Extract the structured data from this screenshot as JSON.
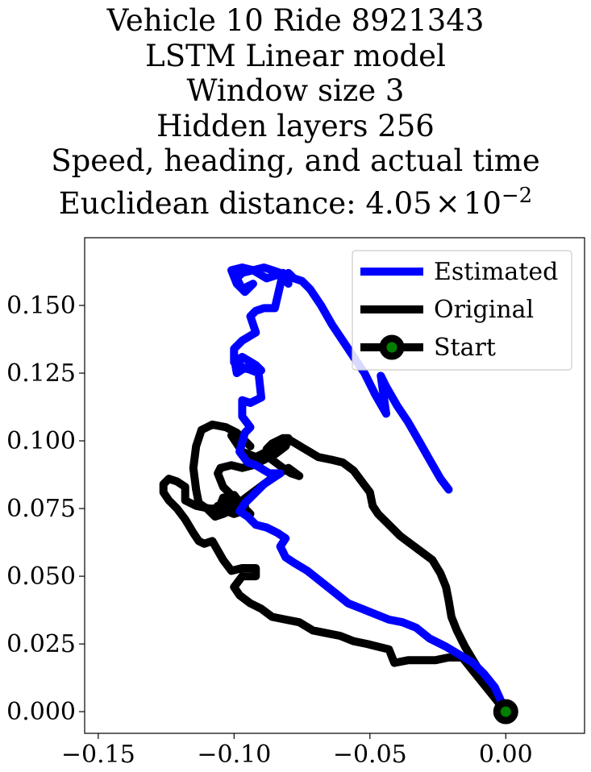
{
  "chart_data": {
    "type": "line",
    "title_lines": [
      "Vehicle 10 Ride 8921343",
      "LSTM Linear model",
      "Window size 3",
      "Hidden layers 256",
      "Speed, heading, and actual time"
    ],
    "title_metric_prefix": "Euclidean distance: ",
    "title_metric_mantissa": "4.05",
    "title_metric_times": "×",
    "title_metric_base": "10",
    "title_metric_exponent": "−2",
    "xlabel": "",
    "ylabel": "",
    "xlim": [
      -0.155,
      0.029
    ],
    "ylim": [
      -0.008,
      0.175
    ],
    "xticks": [
      -0.15,
      -0.1,
      -0.05,
      0.0
    ],
    "xtick_labels": [
      "−0.15",
      "−0.10",
      "−0.05",
      "0.00"
    ],
    "yticks": [
      0.0,
      0.025,
      0.05,
      0.075,
      0.1,
      0.125,
      0.15
    ],
    "ytick_labels": [
      "0.000",
      "0.025",
      "0.050",
      "0.075",
      "0.100",
      "0.125",
      "0.150"
    ],
    "grid": false,
    "legend_position": "top-right",
    "series": [
      {
        "name": "Estimated",
        "color": "#0000ff",
        "line_width": 10,
        "x": [
          -0.021,
          -0.024,
          -0.028,
          -0.032,
          -0.036,
          -0.04,
          -0.044,
          -0.046,
          -0.044,
          -0.048,
          -0.052,
          -0.056,
          -0.06,
          -0.064,
          -0.068,
          -0.072,
          -0.075,
          -0.078,
          -0.08,
          -0.082,
          -0.08,
          -0.083,
          -0.086,
          -0.089,
          -0.093,
          -0.097,
          -0.099,
          -0.097,
          -0.093,
          -0.096,
          -0.099,
          -0.101,
          -0.097,
          -0.093,
          -0.088,
          -0.082,
          -0.085,
          -0.089,
          -0.092,
          -0.094,
          -0.092,
          -0.097,
          -0.1,
          -0.1,
          -0.097,
          -0.092,
          -0.09,
          -0.093,
          -0.097,
          -0.1,
          -0.099,
          -0.096,
          -0.091,
          -0.09,
          -0.094,
          -0.097,
          -0.097,
          -0.094,
          -0.096,
          -0.098,
          -0.095,
          -0.092,
          -0.087,
          -0.083,
          -0.086,
          -0.089,
          -0.093,
          -0.096,
          -0.098,
          -0.095,
          -0.092,
          -0.088,
          -0.084,
          -0.081,
          -0.083,
          -0.081,
          -0.078,
          -0.073,
          -0.068,
          -0.063,
          -0.058,
          -0.053,
          -0.048,
          -0.043,
          -0.038,
          -0.033,
          -0.028,
          -0.022,
          -0.017,
          -0.012,
          -0.008,
          -0.004,
          0.0
        ],
        "y": [
          0.082,
          0.086,
          0.093,
          0.1,
          0.107,
          0.113,
          0.12,
          0.124,
          0.11,
          0.117,
          0.125,
          0.131,
          0.137,
          0.143,
          0.15,
          0.156,
          0.159,
          0.16,
          0.162,
          0.16,
          0.158,
          0.162,
          0.163,
          0.164,
          0.163,
          0.162,
          0.16,
          0.156,
          0.158,
          0.155,
          0.158,
          0.163,
          0.164,
          0.163,
          0.16,
          0.162,
          0.149,
          0.149,
          0.148,
          0.146,
          0.14,
          0.137,
          0.134,
          0.129,
          0.131,
          0.128,
          0.126,
          0.126,
          0.127,
          0.131,
          0.125,
          0.127,
          0.125,
          0.116,
          0.114,
          0.115,
          0.109,
          0.105,
          0.103,
          0.096,
          0.092,
          0.091,
          0.088,
          0.088,
          0.086,
          0.084,
          0.08,
          0.077,
          0.074,
          0.072,
          0.069,
          0.068,
          0.066,
          0.064,
          0.061,
          0.057,
          0.055,
          0.052,
          0.048,
          0.044,
          0.04,
          0.038,
          0.036,
          0.034,
          0.033,
          0.031,
          0.027,
          0.024,
          0.021,
          0.018,
          0.014,
          0.009,
          0.0
        ]
      },
      {
        "name": "Original",
        "color": "#000000",
        "line_width": 10,
        "x": [
          0.0,
          -0.004,
          -0.008,
          -0.012,
          -0.016,
          -0.021,
          -0.026,
          -0.031,
          -0.036,
          -0.041,
          -0.043,
          -0.047,
          -0.051,
          -0.056,
          -0.061,
          -0.066,
          -0.071,
          -0.076,
          -0.081,
          -0.086,
          -0.09,
          -0.094,
          -0.098,
          -0.1,
          -0.097,
          -0.092,
          -0.092,
          -0.097,
          -0.101,
          -0.104,
          -0.108,
          -0.111,
          -0.113,
          -0.115,
          -0.118,
          -0.121,
          -0.124,
          -0.126,
          -0.126,
          -0.124,
          -0.121,
          -0.118,
          -0.118,
          -0.114,
          -0.109,
          -0.105,
          -0.1,
          -0.097,
          -0.096,
          -0.1,
          -0.104,
          -0.106,
          -0.105,
          -0.101,
          -0.097,
          -0.093,
          -0.089,
          -0.085,
          -0.081,
          -0.08,
          -0.082,
          -0.086,
          -0.088,
          -0.086,
          -0.082,
          -0.079,
          -0.076,
          -0.08,
          -0.085,
          -0.089,
          -0.093,
          -0.097,
          -0.1,
          -0.103,
          -0.106,
          -0.108,
          -0.106,
          -0.104,
          -0.1,
          -0.097,
          -0.094,
          -0.096,
          -0.1,
          -0.104,
          -0.107,
          -0.11,
          -0.113,
          -0.114,
          -0.115,
          -0.114,
          -0.112,
          -0.108,
          -0.103,
          -0.099,
          -0.096,
          -0.094,
          -0.096,
          -0.099,
          -0.101,
          -0.097,
          -0.092,
          -0.088,
          -0.084,
          -0.079,
          -0.074,
          -0.069,
          -0.064,
          -0.06,
          -0.056,
          -0.053,
          -0.05,
          -0.049,
          -0.047,
          -0.043,
          -0.039,
          -0.035,
          -0.031,
          -0.027,
          -0.024,
          -0.022,
          -0.021,
          -0.02,
          -0.018,
          -0.015,
          -0.012,
          -0.009,
          -0.006,
          -0.003,
          0.0
        ],
        "y": [
          0.0,
          0.005,
          0.01,
          0.015,
          0.02,
          0.02,
          0.019,
          0.019,
          0.019,
          0.018,
          0.023,
          0.024,
          0.025,
          0.026,
          0.028,
          0.029,
          0.03,
          0.033,
          0.034,
          0.035,
          0.038,
          0.04,
          0.043,
          0.046,
          0.05,
          0.05,
          0.053,
          0.053,
          0.052,
          0.056,
          0.063,
          0.062,
          0.063,
          0.066,
          0.071,
          0.075,
          0.078,
          0.081,
          0.084,
          0.086,
          0.085,
          0.083,
          0.078,
          0.076,
          0.075,
          0.075,
          0.073,
          0.074,
          0.076,
          0.079,
          0.083,
          0.088,
          0.09,
          0.091,
          0.09,
          0.091,
          0.093,
          0.095,
          0.098,
          0.101,
          0.101,
          0.099,
          0.097,
          0.093,
          0.09,
          0.088,
          0.087,
          0.09,
          0.087,
          0.084,
          0.081,
          0.078,
          0.077,
          0.077,
          0.076,
          0.073,
          0.074,
          0.079,
          0.08,
          0.076,
          0.073,
          0.073,
          0.075,
          0.073,
          0.072,
          0.075,
          0.077,
          0.082,
          0.09,
          0.098,
          0.104,
          0.106,
          0.105,
          0.103,
          0.1,
          0.098,
          0.1,
          0.102,
          0.102,
          0.096,
          0.094,
          0.096,
          0.098,
          0.1,
          0.097,
          0.094,
          0.093,
          0.092,
          0.089,
          0.085,
          0.081,
          0.076,
          0.073,
          0.069,
          0.065,
          0.062,
          0.059,
          0.056,
          0.051,
          0.046,
          0.041,
          0.035,
          0.03,
          0.024,
          0.019,
          0.014,
          0.01,
          0.005,
          0.0
        ]
      },
      {
        "name": "Start",
        "type": "marker",
        "color": "#000000",
        "marker_fill": "#008000",
        "x": [
          0.0
        ],
        "y": [
          0.0
        ]
      }
    ]
  }
}
